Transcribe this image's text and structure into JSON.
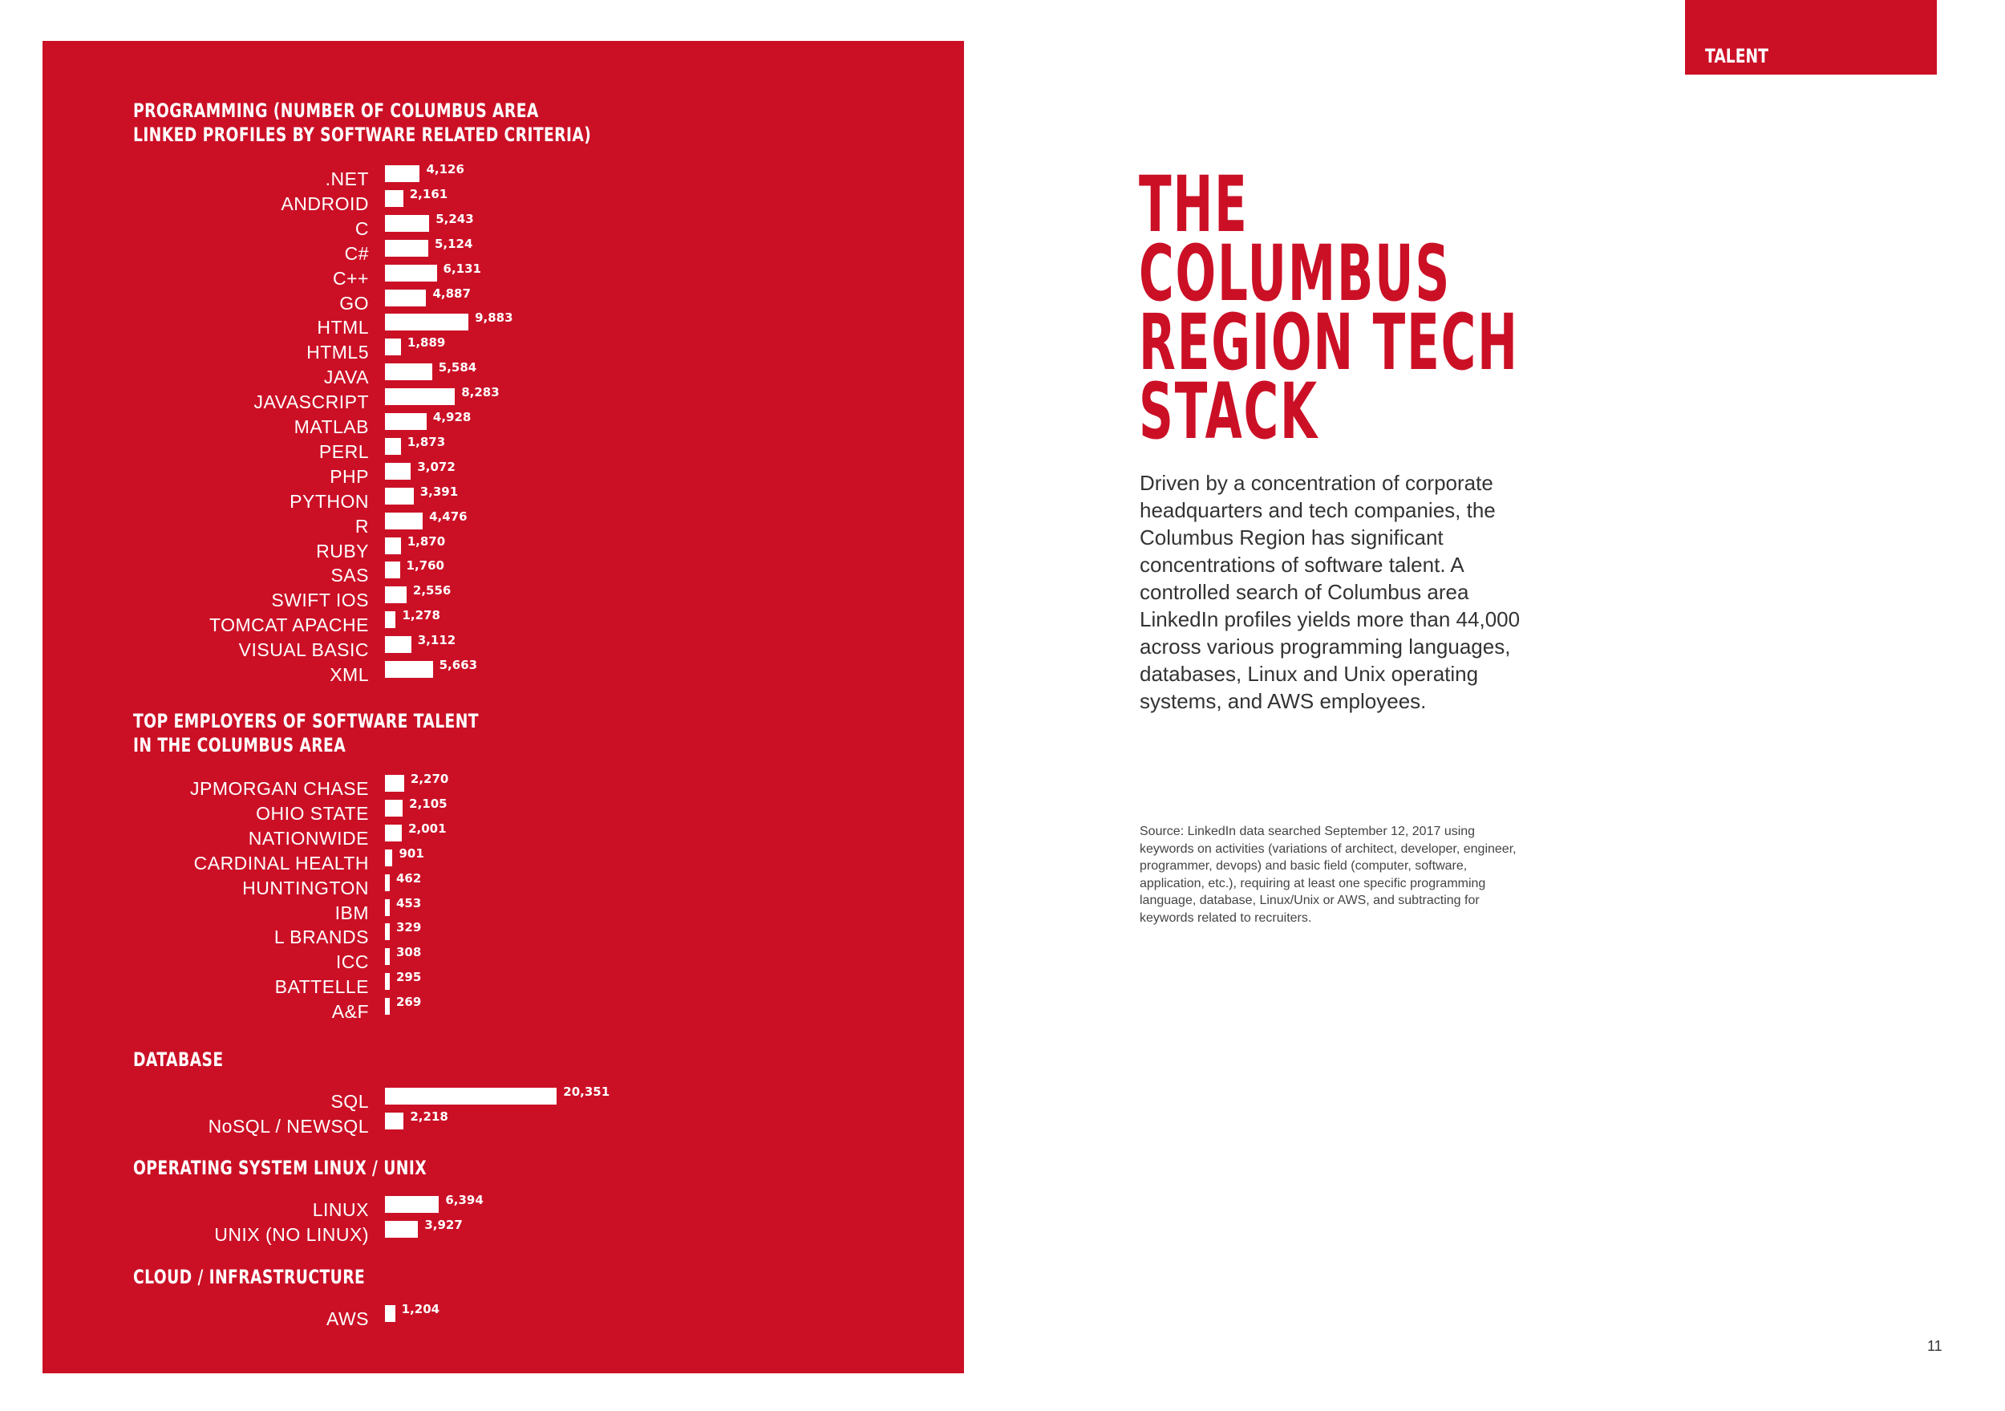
{
  "header": {
    "section_tab": "TALENT"
  },
  "headline": {
    "lines": [
      "THE",
      "COLUMBUS",
      "REGION TECH",
      "STACK"
    ]
  },
  "body_text": "Driven by a concentration of corporate headquarters and tech companies, the Columbus Region has significant concentrations of software talent.  A controlled search of Columbus area LinkedIn profiles yields more than 44,000 across various programming languages, databases, Linux and Unix operating systems, and AWS employees.",
  "source_text": "Source: LinkedIn data searched September 12, 2017 using keywords on activities (variations of architect, developer, engineer, programmer, devops) and basic field (computer, software, application, etc.), requiring at least one specific programming language, database, Linux/Unix or AWS, and subtracting for keywords related to recruiters.",
  "page_number": "11",
  "colors": {
    "accent": "#cb1026",
    "bar": "#ffffff",
    "text": "#333333"
  },
  "chart_data": [
    {
      "type": "bar",
      "orientation": "horizontal",
      "title_lines": [
        "PROGRAMMING (NUMBER OF COLUMBUS AREA",
        "LINKED PROFILES BY SOFTWARE RELATED CRITERIA)"
      ],
      "categories": [
        ".NET",
        "ANDROID",
        "C",
        "C#",
        "C++",
        "GO",
        "HTML",
        "HTML5",
        "JAVA",
        "JAVASCRIPT",
        "MATLAB",
        "PERL",
        "PHP",
        "PYTHON",
        "R",
        "RUBY",
        "SAS",
        "SWIFT IOS",
        "TOMCAT APACHE",
        "VISUAL BASIC",
        "XML"
      ],
      "values": [
        4126,
        2161,
        5243,
        5124,
        6131,
        4887,
        9883,
        1889,
        5584,
        8283,
        4928,
        1873,
        3072,
        3391,
        4476,
        1870,
        1760,
        2556,
        1278,
        3112,
        5663
      ],
      "labels": [
        "4,126",
        "2,161",
        "5,243",
        "5,124",
        "6,131",
        "4,887",
        "9,883",
        "1,889",
        "5,584",
        "8,283",
        "4,928",
        "1,873",
        "3,072",
        "3,391",
        "4,476",
        "1,870",
        "1,760",
        "2,556",
        "1,278",
        "3,112",
        "5,663"
      ]
    },
    {
      "type": "bar",
      "orientation": "horizontal",
      "title_lines": [
        "TOP EMPLOYERS OF SOFTWARE TALENT",
        "IN THE COLUMBUS AREA"
      ],
      "categories": [
        "JPMORGAN CHASE",
        "OHIO STATE",
        "NATIONWIDE",
        "CARDINAL HEALTH",
        "HUNTINGTON",
        "IBM",
        "L BRANDS",
        "ICC",
        "BATTELLE",
        "A&F"
      ],
      "values": [
        2270,
        2105,
        2001,
        901,
        462,
        453,
        329,
        308,
        295,
        269
      ],
      "labels": [
        "2,270",
        "2,105",
        "2,001",
        "901",
        "462",
        "453",
        "329",
        "308",
        "295",
        "269"
      ]
    },
    {
      "type": "bar",
      "orientation": "horizontal",
      "title_lines": [
        "DATABASE"
      ],
      "categories": [
        "SQL",
        "NoSQL / NEWSQL"
      ],
      "values": [
        20351,
        2218
      ],
      "labels": [
        "20,351",
        "2,218"
      ]
    },
    {
      "type": "bar",
      "orientation": "horizontal",
      "title_lines": [
        "OPERATING SYSTEM LINUX / UNIX"
      ],
      "categories": [
        "LINUX",
        "UNIX (NO LINUX)"
      ],
      "values": [
        6394,
        3927
      ],
      "labels": [
        "6,394",
        "3,927"
      ]
    },
    {
      "type": "bar",
      "orientation": "horizontal",
      "title_lines": [
        "CLOUD / INFRASTRUCTURE"
      ],
      "categories": [
        "AWS"
      ],
      "values": [
        1204
      ],
      "labels": [
        "1,204"
      ]
    }
  ]
}
